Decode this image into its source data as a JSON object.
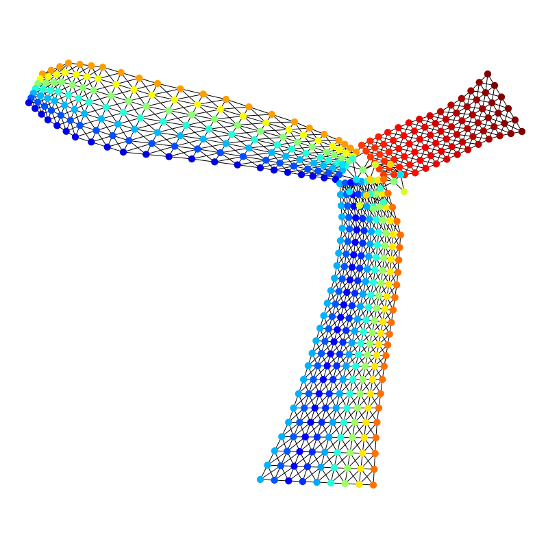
{
  "figure": {
    "kind": "mesh-graph",
    "node_colormap": "jet",
    "edge_color": "#000000",
    "background": "#ffffff"
  }
}
